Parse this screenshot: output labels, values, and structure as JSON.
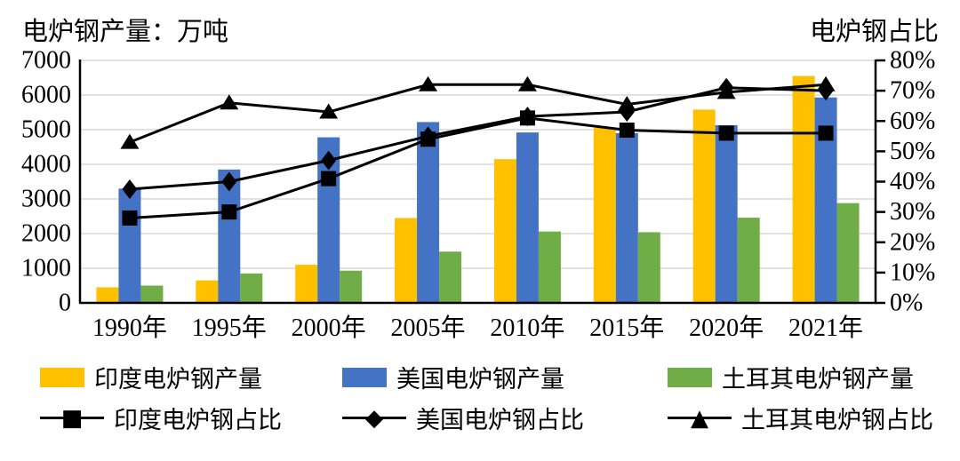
{
  "titles": {
    "left_axis_title": "电炉钢产量：万吨",
    "right_axis_title": "电炉钢占比"
  },
  "chart_data": {
    "type": "combo bar+line, dual axis",
    "categories": [
      "1990年",
      "1995年",
      "2000年",
      "2005年",
      "2010年",
      "2015年",
      "2020年",
      "2021年"
    ],
    "bar_series": [
      {
        "name": "印度电炉钢产量",
        "color": "#FFC000",
        "values": [
          450,
          650,
          1100,
          2450,
          4150,
          5050,
          5580,
          6550
        ]
      },
      {
        "name": "美国电炉钢产量",
        "color": "#4472C4",
        "values": [
          3300,
          3850,
          4780,
          5220,
          4920,
          4900,
          5130,
          5930
        ]
      },
      {
        "name": "土耳其电炉钢产量",
        "color": "#70AD47",
        "values": [
          500,
          850,
          930,
          1480,
          2060,
          2040,
          2460,
          2880
        ]
      }
    ],
    "line_series": [
      {
        "name": "印度电炉钢占比",
        "marker": "square",
        "color": "#000000",
        "values": [
          28,
          30,
          41,
          54,
          61,
          57,
          56,
          56
        ]
      },
      {
        "name": "美国电炉钢占比",
        "marker": "diamond",
        "color": "#000000",
        "values": [
          37.5,
          40,
          47,
          55,
          61.5,
          63,
          71,
          70
        ]
      },
      {
        "name": "土耳其电炉钢占比",
        "marker": "triangle",
        "color": "#000000",
        "values": [
          53,
          66,
          63,
          72,
          72,
          65.5,
          69.5,
          72
        ]
      }
    ],
    "left_axis": {
      "label": "电炉钢产量：万吨",
      "min": 0,
      "max": 7000,
      "step": 1000,
      "tick_labels": [
        "7000",
        "6000",
        "5000",
        "4000",
        "3000",
        "2000",
        "1000",
        "0"
      ]
    },
    "right_axis": {
      "label": "电炉钢占比",
      "min": 0,
      "max": 80,
      "step": 10,
      "tick_labels": [
        "80%",
        "70%",
        "60%",
        "50%",
        "40%",
        "30%",
        "20%",
        "10%",
        "0%"
      ]
    },
    "grid": {
      "horizontal": true,
      "color": "#D9D9D9"
    },
    "axis_color": "#000000",
    "legend_position": "bottom"
  },
  "legend": {
    "items": [
      {
        "label": "印度电炉钢产量",
        "swatch": "bar",
        "color": "#FFC000"
      },
      {
        "label": "美国电炉钢产量",
        "swatch": "bar",
        "color": "#4472C4"
      },
      {
        "label": "土耳其电炉钢产量",
        "swatch": "bar",
        "color": "#70AD47"
      },
      {
        "label": "印度电炉钢占比",
        "swatch": "line-marker",
        "marker": "square",
        "glyph": "■",
        "color": "#000000"
      },
      {
        "label": "美国电炉钢占比",
        "swatch": "line-marker",
        "marker": "diamond",
        "glyph": "◆",
        "color": "#000000"
      },
      {
        "label": "土耳其电炉钢占比",
        "swatch": "line-marker",
        "marker": "triangle",
        "glyph": "▲",
        "color": "#000000"
      }
    ]
  }
}
